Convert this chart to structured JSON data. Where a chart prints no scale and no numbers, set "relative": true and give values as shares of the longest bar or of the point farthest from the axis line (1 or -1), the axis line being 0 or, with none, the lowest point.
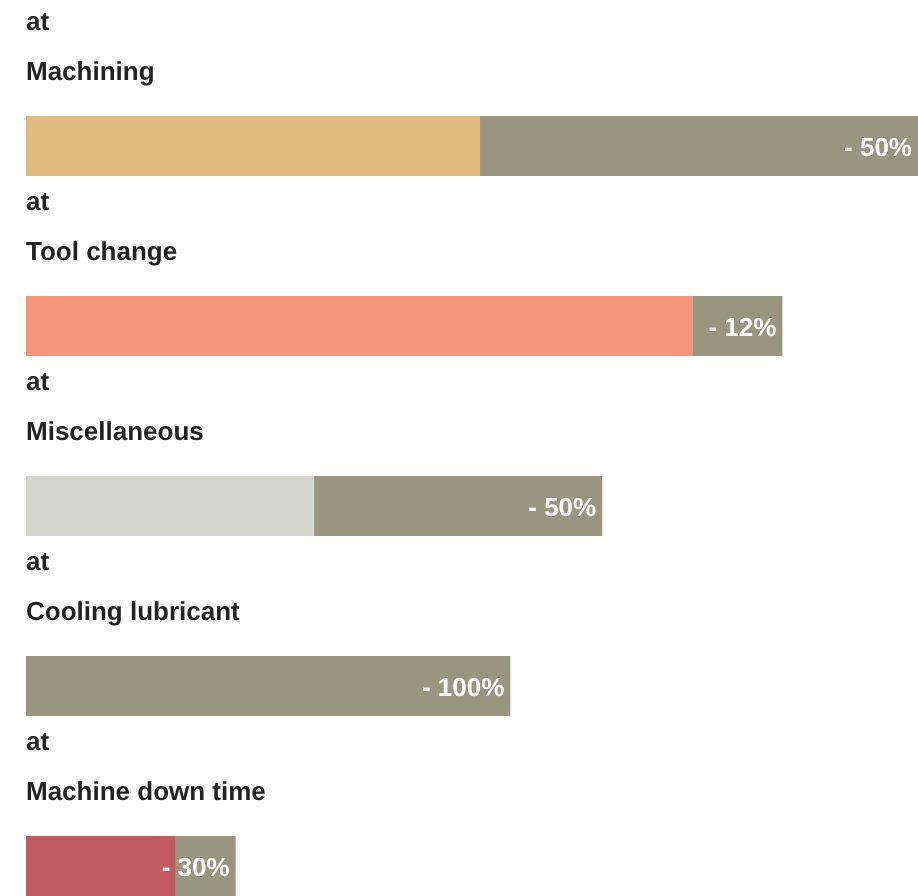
{
  "chart_data": {
    "type": "bar",
    "orientation": "horizontal",
    "stacked": true,
    "relative": true,
    "categories": [
      "at\nMachining",
      "at\nTool change",
      "at\nMiscellaneous",
      "at\nCooling lubricant",
      "at\nMachine down time"
    ],
    "series": [
      {
        "colors": [
          "#dfbb80",
          "#f5967a",
          "#d7d7d2",
          "#9a9580",
          "#bf5a60"
        ],
        "values": [
          0.509,
          0.747,
          0.323,
          0,
          0.168
        ]
      },
      {
        "color": "#9a9580",
        "values": [
          0.491,
          0.101,
          0.323,
          0.543,
          0.067
        ]
      }
    ],
    "annotations": [
      {
        "text": "- 50%",
        "x": 1,
        "y": "at\nMachining"
      },
      {
        "text": "- 12%",
        "x": 0.848,
        "y": "at\nTool change"
      },
      {
        "text": "- 50%",
        "x": 0.646,
        "y": "at\nMiscellaneous"
      },
      {
        "text": "- 100%",
        "x": 0.543,
        "y": "at\nCooling lubricant"
      },
      {
        "text": "- 30%",
        "x": 0.235,
        "y": "at\nMachine down time"
      }
    ]
  }
}
